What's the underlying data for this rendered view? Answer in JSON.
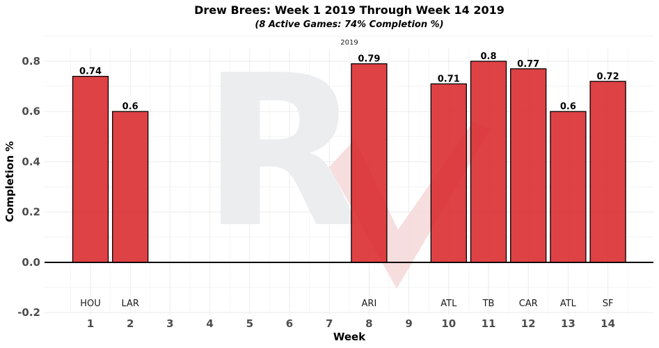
{
  "chart_data": {
    "type": "bar",
    "title": "Drew Brees: Week 1 2019 Through Week 14 2019",
    "subtitle": "(8 Active Games: 74% Completion %)",
    "facet_label": "2019",
    "xlabel": "Week",
    "ylabel": "Completion %",
    "categories": [
      "1",
      "2",
      "3",
      "4",
      "5",
      "6",
      "7",
      "8",
      "9",
      "10",
      "11",
      "12",
      "13",
      "14"
    ],
    "values": [
      0.74,
      0.6,
      null,
      null,
      null,
      null,
      null,
      0.79,
      null,
      0.71,
      0.8,
      0.77,
      0.6,
      0.72
    ],
    "value_labels": [
      "0.74",
      "0.6",
      "",
      "",
      "",
      "",
      "",
      "0.79",
      "",
      "0.71",
      "0.8",
      "0.77",
      "0.6",
      "0.72"
    ],
    "opponents": [
      "HOU",
      "LAR",
      "",
      "",
      "",
      "",
      "",
      "ARI",
      "",
      "ATL",
      "TB",
      "CAR",
      "ATL",
      "SF"
    ],
    "ylim": [
      -0.2,
      0.8
    ],
    "yticks": [
      "-0.2",
      "0.0",
      "0.2",
      "0.4",
      "0.6",
      "0.8"
    ],
    "ytick_values": [
      -0.2,
      0.0,
      0.2,
      0.4,
      0.6,
      0.8
    ],
    "grid": true,
    "bar_color": "#d9282b",
    "watermark_letter": "R"
  }
}
